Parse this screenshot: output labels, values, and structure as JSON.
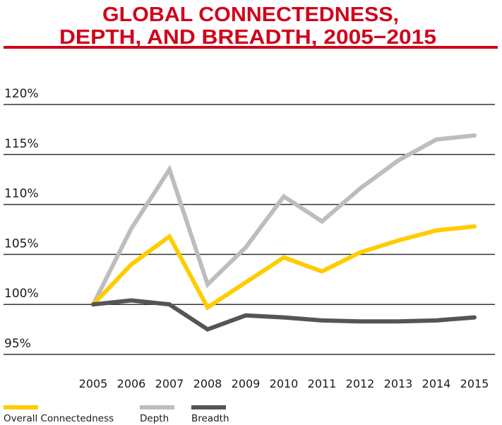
{
  "chart_data": {
    "type": "line",
    "title_lines": [
      "GLOBAL CONNECTEDNESS,",
      "DEPTH, AND BREADTH, 2005−2015"
    ],
    "xlabel": "",
    "ylabel": "",
    "x": [
      "2005",
      "2006",
      "2007",
      "2008",
      "2009",
      "2010",
      "2011",
      "2012",
      "2013",
      "2014",
      "2015"
    ],
    "ylim": [
      95,
      120
    ],
    "yticks": [
      120,
      115,
      110,
      105,
      100,
      95
    ],
    "ytick_labels": [
      "120%",
      "115%",
      "110%",
      "105%",
      "100%",
      "95%"
    ],
    "grid": true,
    "legend_position": "bottom-left",
    "series": [
      {
        "name": "Overall Connectedness",
        "color": "#ffcc00",
        "values": [
          100,
          104.0,
          106.8,
          99.7,
          102.2,
          104.7,
          103.3,
          105.2,
          106.4,
          107.4,
          107.8
        ]
      },
      {
        "name": "Depth",
        "color": "#bdbdbd",
        "values": [
          100,
          107.6,
          113.5,
          102.0,
          105.7,
          110.8,
          108.3,
          111.6,
          114.4,
          116.5,
          116.9
        ]
      },
      {
        "name": "Breadth",
        "color": "#555555",
        "values": [
          100,
          100.4,
          100.0,
          97.5,
          98.9,
          98.7,
          98.4,
          98.3,
          98.3,
          98.4,
          98.7
        ]
      }
    ]
  }
}
